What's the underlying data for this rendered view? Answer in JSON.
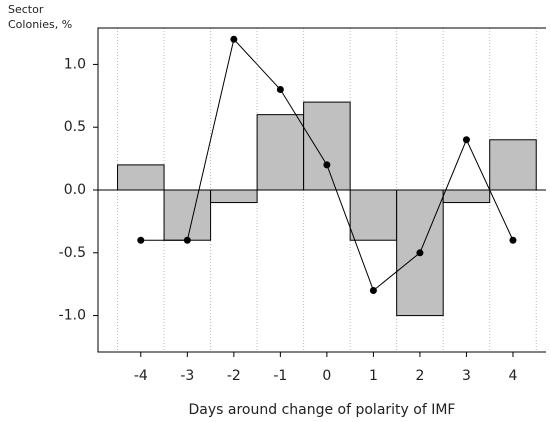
{
  "chart_data": {
    "type": "combo",
    "y_label": [
      "Sector",
      "Colonies, %"
    ],
    "x_label": "Days around change of polarity of IMF",
    "x": [
      -4,
      -3,
      -2,
      -1,
      0,
      1,
      2,
      3,
      4
    ],
    "series": [
      {
        "type": "bar",
        "color": "#c0c0c0",
        "values": [
          0.2,
          -0.4,
          -0.1,
          0.6,
          0.7,
          -0.4,
          -1.0,
          -0.1,
          0.4
        ]
      },
      {
        "type": "line",
        "color": "#000000",
        "values": [
          -0.4,
          -0.4,
          1.2,
          0.8,
          0.2,
          -0.8,
          -0.5,
          0.4,
          -0.4
        ]
      }
    ],
    "xlim": [
      -4.92,
      4.71
    ],
    "ylim": [
      -1.29,
      1.29
    ],
    "xticks": [
      -4,
      -3,
      -2,
      -1,
      0,
      1,
      2,
      3,
      4
    ],
    "yticks": [
      {
        "value": 1,
        "label": "1.0"
      },
      0.5,
      {
        "value": 0,
        "label": "0.0"
      },
      -0.5,
      {
        "value": -1,
        "label": "-1.0"
      }
    ],
    "grid": true
  }
}
